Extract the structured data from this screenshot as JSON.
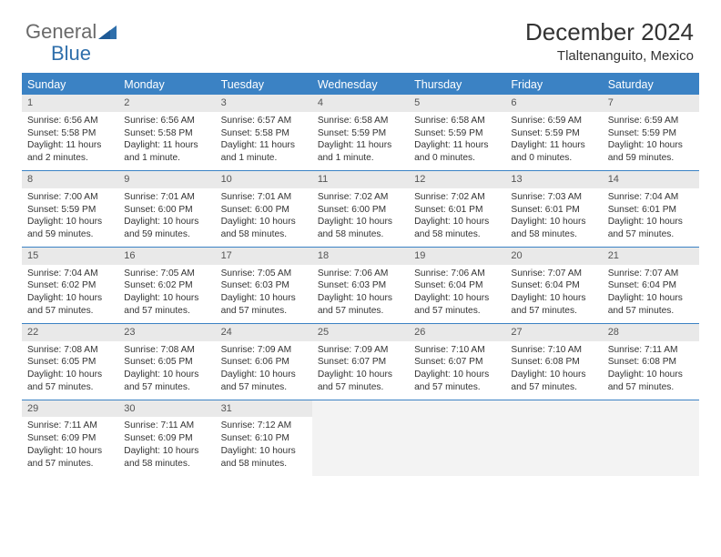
{
  "brand": {
    "part1": "General",
    "part2": "Blue"
  },
  "title": "December 2024",
  "location": "Tlaltenanguito, Mexico",
  "colors": {
    "accent": "#3b82c4",
    "daynum_bg": "#e9e9e9",
    "empty_bg": "#f3f3f3",
    "text": "#333333",
    "white": "#ffffff"
  },
  "day_headers": [
    "Sunday",
    "Monday",
    "Tuesday",
    "Wednesday",
    "Thursday",
    "Friday",
    "Saturday"
  ],
  "weeks": [
    [
      {
        "n": "1",
        "sr": "6:56 AM",
        "ss": "5:58 PM",
        "dl": "11 hours and 2 minutes."
      },
      {
        "n": "2",
        "sr": "6:56 AM",
        "ss": "5:58 PM",
        "dl": "11 hours and 1 minute."
      },
      {
        "n": "3",
        "sr": "6:57 AM",
        "ss": "5:58 PM",
        "dl": "11 hours and 1 minute."
      },
      {
        "n": "4",
        "sr": "6:58 AM",
        "ss": "5:59 PM",
        "dl": "11 hours and 1 minute."
      },
      {
        "n": "5",
        "sr": "6:58 AM",
        "ss": "5:59 PM",
        "dl": "11 hours and 0 minutes."
      },
      {
        "n": "6",
        "sr": "6:59 AM",
        "ss": "5:59 PM",
        "dl": "11 hours and 0 minutes."
      },
      {
        "n": "7",
        "sr": "6:59 AM",
        "ss": "5:59 PM",
        "dl": "10 hours and 59 minutes."
      }
    ],
    [
      {
        "n": "8",
        "sr": "7:00 AM",
        "ss": "5:59 PM",
        "dl": "10 hours and 59 minutes."
      },
      {
        "n": "9",
        "sr": "7:01 AM",
        "ss": "6:00 PM",
        "dl": "10 hours and 59 minutes."
      },
      {
        "n": "10",
        "sr": "7:01 AM",
        "ss": "6:00 PM",
        "dl": "10 hours and 58 minutes."
      },
      {
        "n": "11",
        "sr": "7:02 AM",
        "ss": "6:00 PM",
        "dl": "10 hours and 58 minutes."
      },
      {
        "n": "12",
        "sr": "7:02 AM",
        "ss": "6:01 PM",
        "dl": "10 hours and 58 minutes."
      },
      {
        "n": "13",
        "sr": "7:03 AM",
        "ss": "6:01 PM",
        "dl": "10 hours and 58 minutes."
      },
      {
        "n": "14",
        "sr": "7:04 AM",
        "ss": "6:01 PM",
        "dl": "10 hours and 57 minutes."
      }
    ],
    [
      {
        "n": "15",
        "sr": "7:04 AM",
        "ss": "6:02 PM",
        "dl": "10 hours and 57 minutes."
      },
      {
        "n": "16",
        "sr": "7:05 AM",
        "ss": "6:02 PM",
        "dl": "10 hours and 57 minutes."
      },
      {
        "n": "17",
        "sr": "7:05 AM",
        "ss": "6:03 PM",
        "dl": "10 hours and 57 minutes."
      },
      {
        "n": "18",
        "sr": "7:06 AM",
        "ss": "6:03 PM",
        "dl": "10 hours and 57 minutes."
      },
      {
        "n": "19",
        "sr": "7:06 AM",
        "ss": "6:04 PM",
        "dl": "10 hours and 57 minutes."
      },
      {
        "n": "20",
        "sr": "7:07 AM",
        "ss": "6:04 PM",
        "dl": "10 hours and 57 minutes."
      },
      {
        "n": "21",
        "sr": "7:07 AM",
        "ss": "6:04 PM",
        "dl": "10 hours and 57 minutes."
      }
    ],
    [
      {
        "n": "22",
        "sr": "7:08 AM",
        "ss": "6:05 PM",
        "dl": "10 hours and 57 minutes."
      },
      {
        "n": "23",
        "sr": "7:08 AM",
        "ss": "6:05 PM",
        "dl": "10 hours and 57 minutes."
      },
      {
        "n": "24",
        "sr": "7:09 AM",
        "ss": "6:06 PM",
        "dl": "10 hours and 57 minutes."
      },
      {
        "n": "25",
        "sr": "7:09 AM",
        "ss": "6:07 PM",
        "dl": "10 hours and 57 minutes."
      },
      {
        "n": "26",
        "sr": "7:10 AM",
        "ss": "6:07 PM",
        "dl": "10 hours and 57 minutes."
      },
      {
        "n": "27",
        "sr": "7:10 AM",
        "ss": "6:08 PM",
        "dl": "10 hours and 57 minutes."
      },
      {
        "n": "28",
        "sr": "7:11 AM",
        "ss": "6:08 PM",
        "dl": "10 hours and 57 minutes."
      }
    ],
    [
      {
        "n": "29",
        "sr": "7:11 AM",
        "ss": "6:09 PM",
        "dl": "10 hours and 57 minutes."
      },
      {
        "n": "30",
        "sr": "7:11 AM",
        "ss": "6:09 PM",
        "dl": "10 hours and 58 minutes."
      },
      {
        "n": "31",
        "sr": "7:12 AM",
        "ss": "6:10 PM",
        "dl": "10 hours and 58 minutes."
      },
      null,
      null,
      null,
      null
    ]
  ],
  "labels": {
    "sunrise": "Sunrise: ",
    "sunset": "Sunset: ",
    "daylight": "Daylight: "
  }
}
